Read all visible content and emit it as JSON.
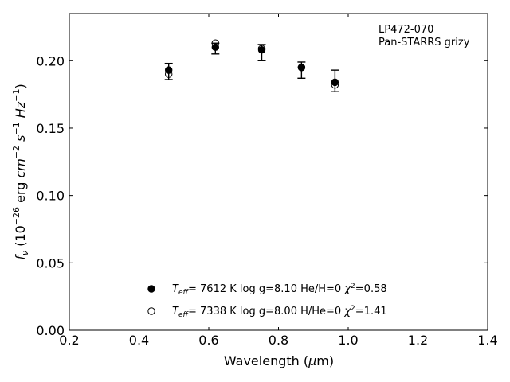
{
  "chart_data": {
    "type": "scatter",
    "xlabel": "Wavelength (μm)",
    "ylabel": "f_ν (10^-26 erg cm^-2 s^-1 Hz^-1)",
    "xlim": [
      0.2,
      1.4
    ],
    "ylim": [
      0.0,
      0.235
    ],
    "x_ticks": [
      "0.2",
      "0.4",
      "0.6",
      "0.8",
      "1.0",
      "1.2",
      "1.4"
    ],
    "y_ticks": [
      "0.00",
      "0.05",
      "0.10",
      "0.15",
      "0.20"
    ],
    "grid": false,
    "annotation": {
      "line1": "LP472-070",
      "line2": "Pan-STARRS grizy"
    },
    "observed": {
      "x": [
        0.485,
        0.619,
        0.752,
        0.866,
        0.962
      ],
      "y": [
        0.192,
        0.209,
        0.206,
        0.193,
        0.185
      ],
      "err": [
        0.006,
        0.004,
        0.006,
        0.006,
        0.008
      ]
    },
    "series": [
      {
        "name": "T_eff= 7612 K log g=8.10 He/H=0 χ²=0.58",
        "marker": "filled",
        "x": [
          0.485,
          0.619,
          0.752,
          0.866,
          0.962
        ],
        "y": [
          0.193,
          0.21,
          0.208,
          0.195,
          0.184
        ]
      },
      {
        "name": "T_eff= 7338 K log g=8.00 H/He=0 χ²=1.41",
        "marker": "open",
        "x": [
          0.485,
          0.619,
          0.752,
          0.866,
          0.962
        ],
        "y": [
          0.19,
          0.213,
          0.209,
          0.195,
          0.182
        ]
      }
    ],
    "legend": {
      "placement": "lower-center",
      "entries": [
        {
          "teff": "7612 K",
          "logg": "log g=8.10",
          "comp": "He/H=0",
          "chi": "=0.58"
        },
        {
          "teff": "7338 K",
          "logg": "log g=8.00",
          "comp": "H/He=0",
          "chi": "=1.41"
        }
      ]
    }
  }
}
